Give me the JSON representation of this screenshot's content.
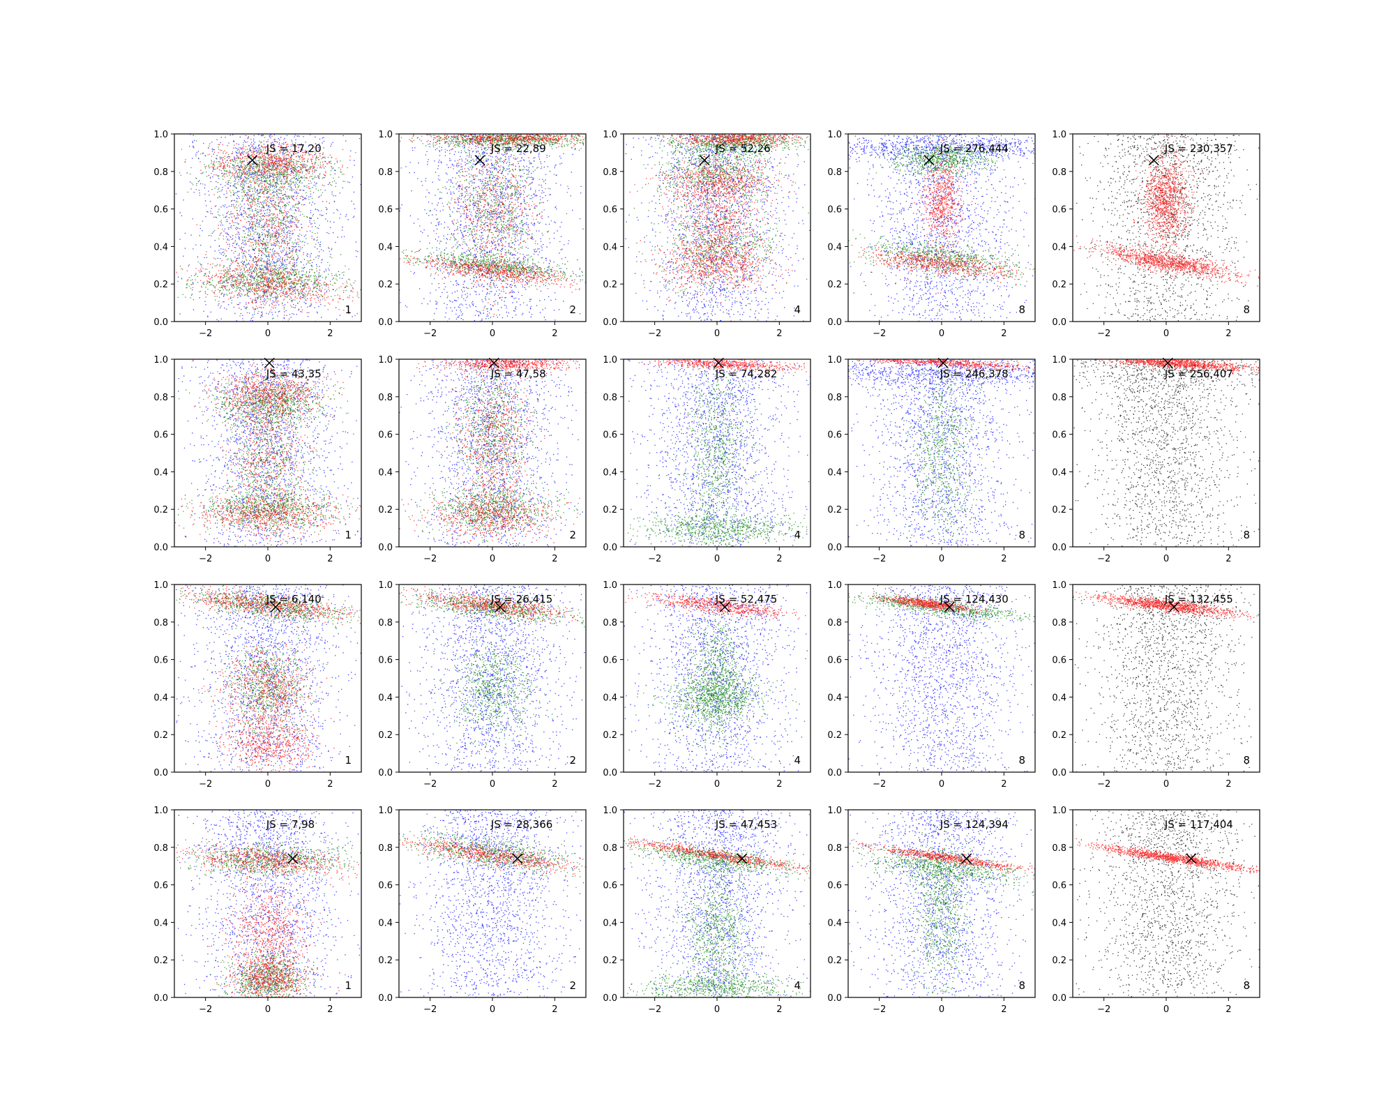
{
  "chart_data": {
    "type": "scatter",
    "layout": {
      "rows": 4,
      "cols": 5
    },
    "xlim": [
      -3,
      3
    ],
    "ylim": [
      0,
      1
    ],
    "xticks": [
      -2,
      0,
      2
    ],
    "xtick_labels": [
      "−2",
      "0",
      "2"
    ],
    "yticks": [
      0,
      0.2,
      0.4,
      0.6,
      0.8,
      1.0
    ],
    "ytick_labels": [
      "0.0",
      "0.2",
      "0.4",
      "0.6",
      "0.8",
      "1.0"
    ],
    "colors": {
      "blue": "#0000ff",
      "green": "#008000",
      "red": "#ff0000",
      "black": "#000000"
    },
    "marker": "x",
    "panels": [
      {
        "row": 0,
        "col": 0,
        "js": "JS = 17,20",
        "count": "1",
        "marker_xy": [
          -0.5,
          0.86
        ],
        "palette": "bgr",
        "red": [
          {
            "x": 0,
            "y": 0.2,
            "sx": 1.3,
            "sy": 0.05,
            "tilt": -0.02
          },
          {
            "x": 0,
            "y": 0.85,
            "sx": 1.0,
            "sy": 0.05
          },
          {
            "x": 0,
            "y": 0.55,
            "sx": 0.7,
            "sy": 0.22
          }
        ],
        "green": [
          {
            "x": 0,
            "y": 0.22,
            "sx": 1.3,
            "sy": 0.05
          },
          {
            "x": 0,
            "y": 0.8,
            "sx": 1.0,
            "sy": 0.06
          },
          {
            "x": 0,
            "y": 0.5,
            "sx": 0.7,
            "sy": 0.2
          }
        ]
      },
      {
        "row": 0,
        "col": 1,
        "js": "JS = 22,89",
        "count": "2",
        "marker_xy": [
          -0.4,
          0.86
        ],
        "palette": "bgr",
        "red": [
          {
            "x": 0,
            "y": 0.27,
            "sx": 1.4,
            "sy": 0.025,
            "tilt": -0.02
          },
          {
            "x": 0.5,
            "y": 0.98,
            "sx": 1.3,
            "sy": 0.02
          },
          {
            "x": 0,
            "y": 0.6,
            "sx": 0.7,
            "sy": 0.2
          }
        ],
        "green": [
          {
            "x": 0,
            "y": 0.3,
            "sx": 1.4,
            "sy": 0.03,
            "tilt": -0.02
          },
          {
            "x": 0.5,
            "y": 0.97,
            "sx": 1.3,
            "sy": 0.02
          },
          {
            "x": 0,
            "y": 0.6,
            "sx": 0.7,
            "sy": 0.2
          }
        ]
      },
      {
        "row": 0,
        "col": 2,
        "js": "JS = 52,26",
        "count": "4",
        "marker_xy": [
          -0.4,
          0.86
        ],
        "palette": "bgr",
        "red": [
          {
            "x": 0,
            "y": 0.3,
            "sx": 0.9,
            "sy": 0.07
          },
          {
            "x": 0,
            "y": 0.75,
            "sx": 0.9,
            "sy": 0.06
          },
          {
            "x": 0.6,
            "y": 0.98,
            "sx": 1.0,
            "sy": 0.02
          },
          {
            "x": 0,
            "y": 0.5,
            "sx": 0.7,
            "sy": 0.12
          }
        ],
        "green": [
          {
            "x": 0,
            "y": 0.4,
            "sx": 0.9,
            "sy": 0.12
          },
          {
            "x": 0,
            "y": 0.8,
            "sx": 0.9,
            "sy": 0.08
          },
          {
            "x": 0.6,
            "y": 0.96,
            "sx": 1.0,
            "sy": 0.03
          }
        ]
      },
      {
        "row": 0,
        "col": 3,
        "js": "JS = 276,444",
        "count": "8",
        "marker_xy": [
          -0.4,
          0.86
        ],
        "palette": "bgr",
        "blue_band": {
          "y": 0.93,
          "sy": 0.03
        },
        "red": [
          {
            "x": -0.1,
            "y": 0.31,
            "sx": 1.2,
            "sy": 0.03,
            "tilt": -0.02
          },
          {
            "x": 0,
            "y": 0.65,
            "sx": 0.3,
            "sy": 0.12
          }
        ],
        "green": [
          {
            "x": 0,
            "y": 0.34,
            "sx": 1.3,
            "sy": 0.04,
            "tilt": -0.02
          },
          {
            "x": 0,
            "y": 0.87,
            "sx": 0.8,
            "sy": 0.04
          }
        ]
      },
      {
        "row": 0,
        "col": 4,
        "js": "JS = 230,357",
        "count": "8",
        "marker_xy": [
          -0.4,
          0.86
        ],
        "palette": "kr",
        "red": [
          {
            "x": 0,
            "y": 0.32,
            "sx": 1.1,
            "sy": 0.025,
            "tilt": -0.03
          },
          {
            "x": 0,
            "y": 0.65,
            "sx": 0.35,
            "sy": 0.12
          }
        ]
      },
      {
        "row": 1,
        "col": 0,
        "js": "JS = 43,35",
        "count": "1",
        "marker_xy": [
          0.05,
          0.98
        ],
        "palette": "bgr",
        "red": [
          {
            "x": 0,
            "y": 0.18,
            "sx": 1.2,
            "sy": 0.05
          },
          {
            "x": 0,
            "y": 0.82,
            "sx": 0.9,
            "sy": 0.06
          },
          {
            "x": 0,
            "y": 0.5,
            "sx": 0.6,
            "sy": 0.2
          }
        ],
        "green": [
          {
            "x": 0,
            "y": 0.2,
            "sx": 1.1,
            "sy": 0.05
          },
          {
            "x": 0,
            "y": 0.78,
            "sx": 0.9,
            "sy": 0.06
          },
          {
            "x": 0,
            "y": 0.5,
            "sx": 0.6,
            "sy": 0.2
          }
        ]
      },
      {
        "row": 1,
        "col": 1,
        "js": "JS = 47,58",
        "count": "2",
        "marker_xy": [
          0.05,
          0.98
        ],
        "palette": "bgr",
        "red": [
          {
            "x": 0,
            "y": 0.17,
            "sx": 1.0,
            "sy": 0.06
          },
          {
            "x": 0.4,
            "y": 0.98,
            "sx": 1.0,
            "sy": 0.02
          },
          {
            "x": 0,
            "y": 0.55,
            "sx": 0.6,
            "sy": 0.2
          }
        ],
        "green": [
          {
            "x": 0,
            "y": 0.2,
            "sx": 1.0,
            "sy": 0.06
          },
          {
            "x": 0,
            "y": 0.6,
            "sx": 0.6,
            "sy": 0.2
          }
        ]
      },
      {
        "row": 1,
        "col": 2,
        "js": "JS = 74,282",
        "count": "4",
        "marker_xy": [
          0.05,
          0.98
        ],
        "palette": "bgr",
        "red": [
          {
            "x": 0,
            "y": 0.98,
            "sx": 1.3,
            "sy": 0.015,
            "tilt": -0.01
          }
        ],
        "green": [
          {
            "x": 0,
            "y": 0.1,
            "sx": 1.2,
            "sy": 0.04
          },
          {
            "x": 0,
            "y": 0.5,
            "sx": 0.5,
            "sy": 0.22
          }
        ]
      },
      {
        "row": 1,
        "col": 3,
        "js": "JS = 246,378",
        "count": "8",
        "marker_xy": [
          0.05,
          0.98
        ],
        "palette": "bgr",
        "blue_band": {
          "y": 0.93,
          "sy": 0.04
        },
        "red": [
          {
            "x": 0,
            "y": 0.985,
            "sx": 1.3,
            "sy": 0.01,
            "tilt": -0.01
          }
        ],
        "green": [
          {
            "x": 0,
            "y": 0.5,
            "sx": 0.5,
            "sy": 0.25
          }
        ]
      },
      {
        "row": 1,
        "col": 4,
        "js": "JS = 256,407",
        "count": "8",
        "marker_xy": [
          0.05,
          0.98
        ],
        "palette": "kr",
        "black_band": {
          "y": 0.93,
          "sy": 0.06
        },
        "red": [
          {
            "x": 0.3,
            "y": 0.98,
            "sx": 1.2,
            "sy": 0.012,
            "tilt": -0.012
          }
        ]
      },
      {
        "row": 2,
        "col": 0,
        "js": "JS = 6,140",
        "count": "1",
        "marker_xy": [
          0.25,
          0.88
        ],
        "palette": "bgr",
        "red": [
          {
            "x": 0,
            "y": 0.89,
            "sx": 1.3,
            "sy": 0.03,
            "tilt": -0.02
          },
          {
            "x": 0,
            "y": 0.45,
            "sx": 0.7,
            "sy": 0.1
          },
          {
            "x": 0,
            "y": 0.15,
            "sx": 0.7,
            "sy": 0.08
          }
        ],
        "green": [
          {
            "x": 0,
            "y": 0.89,
            "sx": 1.3,
            "sy": 0.03,
            "tilt": -0.02
          },
          {
            "x": 0,
            "y": 0.45,
            "sx": 0.6,
            "sy": 0.12
          }
        ]
      },
      {
        "row": 2,
        "col": 1,
        "js": "JS = 26,415",
        "count": "2",
        "marker_xy": [
          0.25,
          0.88
        ],
        "palette": "bgr",
        "red": [
          {
            "x": 0,
            "y": 0.89,
            "sx": 1.3,
            "sy": 0.025,
            "tilt": -0.02
          }
        ],
        "green": [
          {
            "x": 0,
            "y": 0.88,
            "sx": 1.3,
            "sy": 0.03,
            "tilt": -0.02
          },
          {
            "x": 0,
            "y": 0.45,
            "sx": 0.6,
            "sy": 0.12
          }
        ]
      },
      {
        "row": 2,
        "col": 2,
        "js": "JS = 52,475",
        "count": "4",
        "marker_xy": [
          0.25,
          0.88
        ],
        "palette": "bgr",
        "red": [
          {
            "x": 0,
            "y": 0.89,
            "sx": 1.2,
            "sy": 0.02,
            "tilt": -0.02
          }
        ],
        "green": [
          {
            "x": 0,
            "y": 0.4,
            "sx": 0.8,
            "sy": 0.06
          },
          {
            "x": 0,
            "y": 0.5,
            "sx": 0.4,
            "sy": 0.15
          }
        ]
      },
      {
        "row": 2,
        "col": 3,
        "js": "JS = 124,430",
        "count": "8",
        "marker_xy": [
          0.25,
          0.88
        ],
        "palette": "bgr",
        "red": [
          {
            "x": -0.5,
            "y": 0.9,
            "sx": 0.7,
            "sy": 0.012,
            "tilt": -0.02
          }
        ],
        "green": [
          {
            "x": 0,
            "y": 0.88,
            "sx": 1.5,
            "sy": 0.02,
            "tilt": -0.02
          }
        ]
      },
      {
        "row": 2,
        "col": 4,
        "js": "JS = 132,455",
        "count": "8",
        "marker_xy": [
          0.25,
          0.88
        ],
        "palette": "kr",
        "red": [
          {
            "x": 0,
            "y": 0.89,
            "sx": 1.1,
            "sy": 0.015,
            "tilt": -0.02
          }
        ]
      },
      {
        "row": 3,
        "col": 0,
        "js": "JS = 7,98",
        "count": "1",
        "marker_xy": [
          0.8,
          0.74
        ],
        "palette": "bgr",
        "red": [
          {
            "x": 0,
            "y": 0.73,
            "sx": 1.3,
            "sy": 0.04,
            "tilt": -0.01
          },
          {
            "x": 0,
            "y": 0.1,
            "sx": 0.6,
            "sy": 0.06
          },
          {
            "x": 0,
            "y": 0.35,
            "sx": 0.6,
            "sy": 0.12
          }
        ],
        "green": [
          {
            "x": 0,
            "y": 0.74,
            "sx": 1.3,
            "sy": 0.04
          },
          {
            "x": 0,
            "y": 0.1,
            "sx": 0.6,
            "sy": 0.06
          }
        ]
      },
      {
        "row": 3,
        "col": 1,
        "js": "JS = 28,366",
        "count": "2",
        "marker_xy": [
          0.8,
          0.74
        ],
        "palette": "bgr",
        "red": [
          {
            "x": 0,
            "y": 0.76,
            "sx": 1.4,
            "sy": 0.025,
            "tilt": -0.025
          }
        ],
        "green": [
          {
            "x": 0,
            "y": 0.77,
            "sx": 1.4,
            "sy": 0.04,
            "tilt": -0.02
          }
        ]
      },
      {
        "row": 3,
        "col": 2,
        "js": "JS = 47,453",
        "count": "4",
        "marker_xy": [
          0.8,
          0.74
        ],
        "palette": "bgr",
        "red": [
          {
            "x": 0,
            "y": 0.76,
            "sx": 1.5,
            "sy": 0.013,
            "tilt": -0.025
          }
        ],
        "green": [
          {
            "x": 0,
            "y": 0.74,
            "sx": 1.3,
            "sy": 0.03,
            "tilt": -0.02
          },
          {
            "x": 0,
            "y": 0.05,
            "sx": 1.2,
            "sy": 0.04
          },
          {
            "x": 0,
            "y": 0.35,
            "sx": 0.5,
            "sy": 0.15
          }
        ]
      },
      {
        "row": 3,
        "col": 3,
        "js": "JS = 124,394",
        "count": "8",
        "marker_xy": [
          0.8,
          0.74
        ],
        "palette": "bgr",
        "red": [
          {
            "x": 0.2,
            "y": 0.745,
            "sx": 1.2,
            "sy": 0.012,
            "tilt": -0.025
          }
        ],
        "green": [
          {
            "x": 0,
            "y": 0.7,
            "sx": 1.3,
            "sy": 0.04,
            "tilt": -0.02
          },
          {
            "x": 0,
            "y": 0.45,
            "sx": 0.4,
            "sy": 0.2
          }
        ]
      },
      {
        "row": 3,
        "col": 4,
        "js": "JS = 117,404",
        "count": "8",
        "marker_xy": [
          0.8,
          0.74
        ],
        "palette": "kr",
        "red": [
          {
            "x": 0.2,
            "y": 0.745,
            "sx": 1.2,
            "sy": 0.012,
            "tilt": -0.025
          }
        ]
      }
    ]
  }
}
